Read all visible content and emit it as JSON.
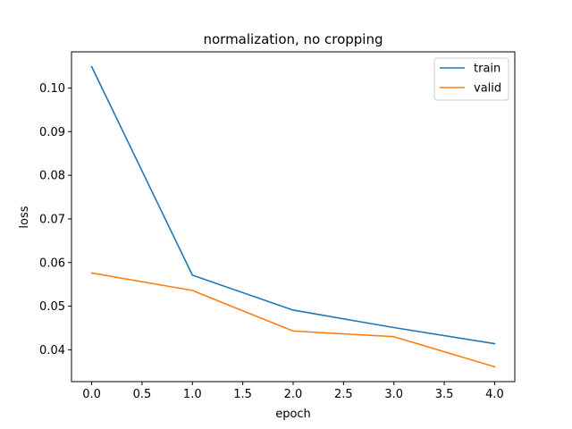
{
  "chart_data": {
    "type": "line",
    "title": "normalization, no cropping",
    "xlabel": "epoch",
    "ylabel": "loss",
    "x": [
      0,
      1,
      2,
      3,
      4
    ],
    "xlim": [
      -0.2,
      4.2
    ],
    "ylim": [
      0.0327,
      0.1083
    ],
    "xticks": [
      0.0,
      0.5,
      1.0,
      1.5,
      2.0,
      2.5,
      3.0,
      3.5,
      4.0
    ],
    "xtick_labels": [
      "0.0",
      "0.5",
      "1.0",
      "1.5",
      "2.0",
      "2.5",
      "3.0",
      "3.5",
      "4.0"
    ],
    "yticks": [
      0.04,
      0.05,
      0.06,
      0.07,
      0.08,
      0.09,
      0.1
    ],
    "ytick_labels": [
      "0.04",
      "0.05",
      "0.06",
      "0.07",
      "0.08",
      "0.09",
      "0.10"
    ],
    "grid": false,
    "legend_position": "top-right",
    "series": [
      {
        "name": "train",
        "color": "#1f77b4",
        "values": [
          0.1049,
          0.0571,
          0.0491,
          0.0451,
          0.0414
        ]
      },
      {
        "name": "valid",
        "color": "#ff7f0e",
        "values": [
          0.0576,
          0.0536,
          0.0443,
          0.043,
          0.0361
        ]
      }
    ]
  }
}
